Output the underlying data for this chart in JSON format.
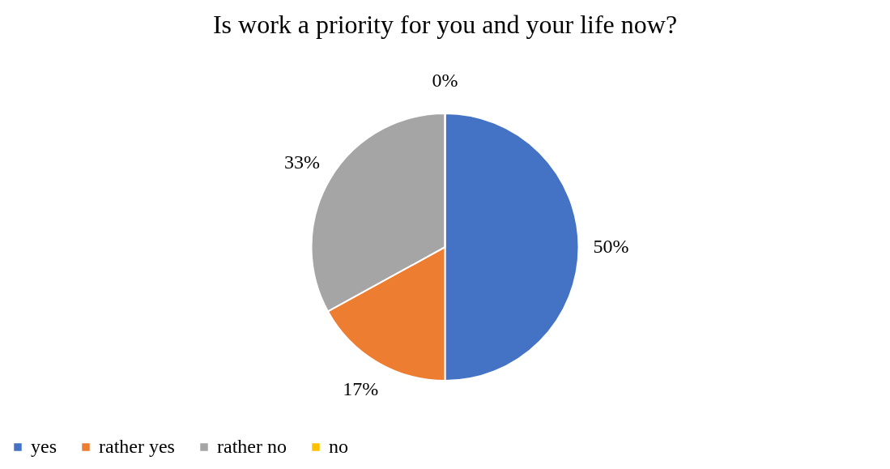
{
  "chart_data": {
    "type": "pie",
    "title": "Is work a priority for you and your life now?",
    "categories": [
      "yes",
      "rather yes",
      "rather no",
      "no"
    ],
    "values": [
      50,
      17,
      33,
      0
    ],
    "colors": [
      "#4472c4",
      "#ed7d31",
      "#a5a5a5",
      "#ffc000"
    ],
    "value_labels": [
      "50%",
      "17%",
      "33%",
      "0%"
    ],
    "legend": "bottom"
  }
}
